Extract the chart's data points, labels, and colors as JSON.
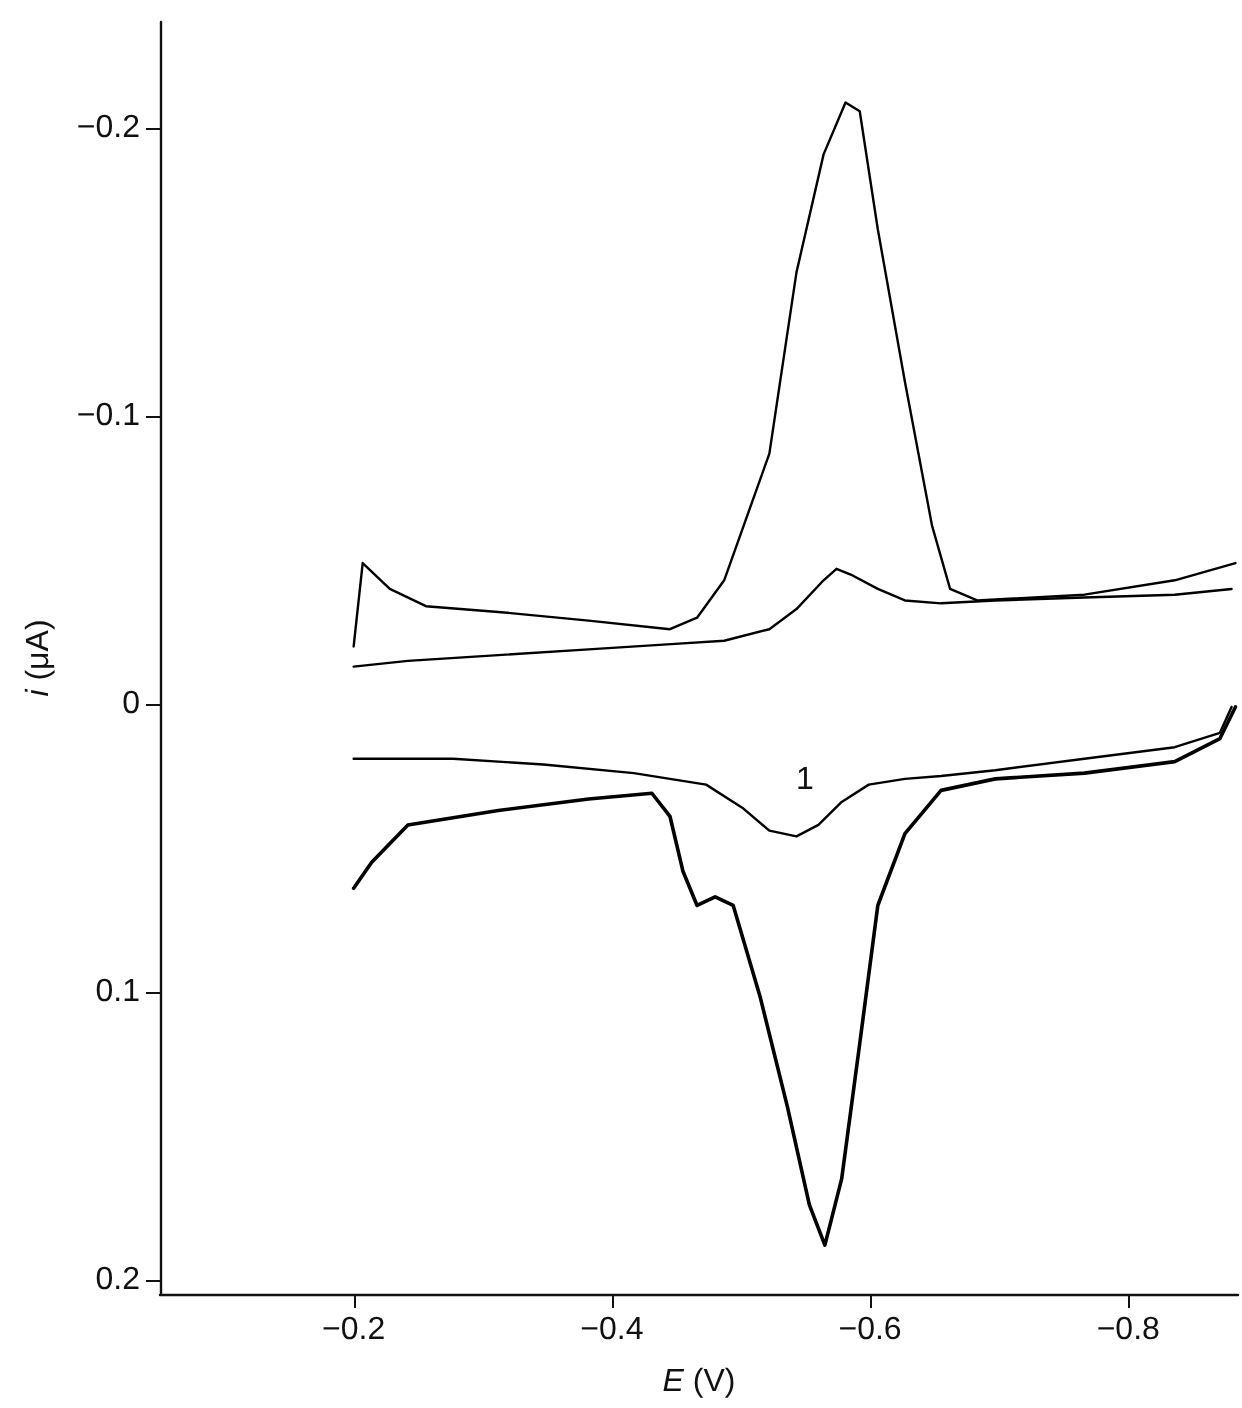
{
  "chart_data": {
    "type": "line",
    "xlabel": "E (V)",
    "ylabel": "i (μA)",
    "xlim": [
      -0.05,
      -0.885
    ],
    "ylim": [
      0.205,
      -0.237
    ],
    "xticks": [
      {
        "value": -0.2,
        "label": "−0.2"
      },
      {
        "value": -0.4,
        "label": "−0.4"
      },
      {
        "value": -0.6,
        "label": "−0.6"
      },
      {
        "value": -0.8,
        "label": "−0.8"
      }
    ],
    "yticks": [
      {
        "value": -0.2,
        "label": "−0.2"
      },
      {
        "value": -0.1,
        "label": "−0.1"
      },
      0,
      0.1,
      0.2
    ],
    "grid": false,
    "marker": "none",
    "line_style": "solid",
    "series": [
      {
        "color": "#000000",
        "x": [
          -0.2,
          -0.242,
          -0.312,
          -0.382,
          -0.452,
          -0.487,
          -0.522,
          -0.543,
          -0.564,
          -0.574,
          -0.585,
          -0.606,
          -0.627,
          -0.655,
          -0.697,
          -0.766,
          -0.836,
          -0.88
        ],
        "values": [
          -0.013,
          -0.015,
          -0.017,
          -0.019,
          -0.021,
          -0.022,
          -0.026,
          -0.033,
          -0.043,
          -0.047,
          -0.045,
          -0.04,
          -0.036,
          -0.035,
          -0.036,
          -0.037,
          -0.038,
          -0.04
        ]
      },
      {
        "color": "#000000",
        "x": [
          -0.2,
          -0.242,
          -0.277,
          -0.347,
          -0.417,
          -0.473,
          -0.501,
          -0.522,
          -0.543,
          -0.56,
          -0.578,
          -0.599,
          -0.627,
          -0.655,
          -0.697,
          -0.766,
          -0.836,
          -0.871,
          -0.88
        ],
        "values": [
          0.019,
          0.019,
          0.019,
          0.021,
          0.024,
          0.028,
          0.036,
          0.044,
          0.046,
          0.042,
          0.034,
          0.028,
          0.026,
          0.025,
          0.023,
          0.019,
          0.015,
          0.01,
          0.001
        ]
      },
      {
        "color": "#000000",
        "x": [
          -0.2,
          -0.207,
          -0.228,
          -0.256,
          -0.312,
          -0.382,
          -0.445,
          -0.466,
          -0.487,
          -0.522,
          -0.543,
          -0.564,
          -0.581,
          -0.592,
          -0.606,
          -0.627,
          -0.648,
          -0.662,
          -0.683,
          -0.766,
          -0.836,
          -0.883
        ],
        "values": [
          -0.02,
          -0.049,
          -0.04,
          -0.034,
          -0.032,
          -0.029,
          -0.026,
          -0.03,
          -0.043,
          -0.087,
          -0.15,
          -0.191,
          -0.209,
          -0.206,
          -0.165,
          -0.112,
          -0.062,
          -0.04,
          -0.036,
          -0.038,
          -0.043,
          -0.049
        ]
      },
      {
        "color": "#000000",
        "x": [
          -0.2,
          -0.214,
          -0.242,
          -0.312,
          -0.382,
          -0.431,
          -0.445,
          -0.455,
          -0.466,
          -0.48,
          -0.494,
          -0.515,
          -0.536,
          -0.553,
          -0.565,
          -0.578,
          -0.592,
          -0.606,
          -0.627,
          -0.655,
          -0.697,
          -0.766,
          -0.836,
          -0.871,
          -0.883
        ],
        "values": [
          0.064,
          0.055,
          0.042,
          0.037,
          0.033,
          0.031,
          0.039,
          0.058,
          0.07,
          0.067,
          0.07,
          0.102,
          0.14,
          0.174,
          0.188,
          0.165,
          0.118,
          0.07,
          0.045,
          0.03,
          0.026,
          0.024,
          0.02,
          0.012,
          0.001
        ]
      }
    ],
    "annotations": [
      "1"
    ]
  }
}
